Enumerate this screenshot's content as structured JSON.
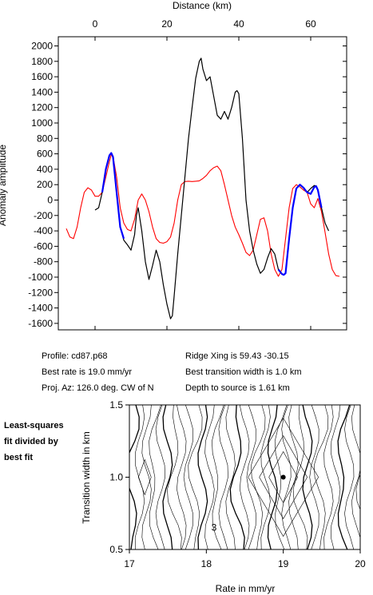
{
  "colors": {
    "observed": "#000000",
    "fit_segments": "#0000ff",
    "model": "#ff0000",
    "frame": "#000000"
  },
  "chart_data": [
    {
      "type": "line",
      "xlabel": "Distance (km)",
      "ylabel": "Anomaly amplitude",
      "xlim": [
        -10,
        70
      ],
      "ylim": [
        -1650,
        2050
      ],
      "x_ticks": [
        "0",
        "20",
        "40",
        "60"
      ],
      "y_ticks": [
        "2000",
        "1800",
        "1600",
        "1400",
        "1200",
        "1000",
        "800",
        "600",
        "400",
        "200",
        "0",
        "-200",
        "-400",
        "-600",
        "-800",
        "-1000",
        "-1200",
        "-1400",
        "-1600"
      ],
      "grid": false,
      "series": [
        {
          "name": "observed",
          "x": [
            0,
            1,
            2,
            3,
            4,
            4.5,
            5,
            6,
            7,
            8,
            9,
            10,
            11,
            11.5,
            12,
            13,
            14,
            15,
            16,
            17,
            18,
            19,
            20,
            21,
            21.5,
            22,
            23,
            24,
            25,
            26,
            27,
            28,
            29,
            29.5,
            30,
            31,
            32,
            33,
            34,
            35,
            35.5,
            36,
            37,
            38,
            39,
            39.5,
            40,
            41,
            42,
            43,
            44,
            45,
            46,
            47,
            48,
            49,
            50,
            51,
            52,
            52.5,
            53,
            54,
            55,
            56,
            57,
            58,
            59,
            60,
            61,
            61.5,
            62,
            63,
            64,
            65
          ],
          "y": [
            -130,
            -100,
            100,
            400,
            580,
            610,
            560,
            100,
            -350,
            -520,
            -580,
            -650,
            -450,
            -200,
            -100,
            -400,
            -800,
            -1030,
            -850,
            -650,
            -800,
            -1100,
            -1350,
            -1540,
            -1500,
            -1250,
            -700,
            -200,
            300,
            800,
            1200,
            1580,
            1800,
            1840,
            1700,
            1550,
            1600,
            1350,
            1100,
            1050,
            1100,
            1150,
            1050,
            1200,
            1400,
            1420,
            1380,
            800,
            0,
            -400,
            -650,
            -830,
            -950,
            -900,
            -750,
            -630,
            -700,
            -900,
            -960,
            -970,
            -950,
            -500,
            -100,
            150,
            200,
            160,
            100,
            150,
            190,
            180,
            130,
            -100,
            -300,
            -400
          ]
        },
        {
          "name": "fit",
          "segments": [
            {
              "x": [
                2,
                3,
                4,
                4.5,
                5,
                6,
                7,
                8
              ],
              "y": [
                100,
                400,
                580,
                610,
                560,
                100,
                -350,
                -500
              ]
            },
            {
              "x": [
                51,
                52,
                52.5,
                53,
                54,
                55,
                56,
                57,
                58,
                59,
                60,
                61,
                61.5,
                62,
                63
              ],
              "y": [
                -900,
                -960,
                -970,
                -950,
                -500,
                -100,
                150,
                200,
                160,
                100,
                80,
                170,
                180,
                130,
                -100
              ]
            }
          ]
        },
        {
          "name": "model",
          "x": [
            -8,
            -7,
            -6,
            -5,
            -4,
            -3,
            -2,
            -1,
            0,
            1,
            2,
            3,
            4,
            4.5,
            5,
            6,
            7,
            8,
            9,
            10,
            11,
            12,
            13,
            14,
            15,
            16,
            17,
            18,
            19,
            20,
            21,
            22,
            23,
            24,
            25,
            26,
            27,
            28,
            29,
            30,
            31,
            32,
            33,
            34,
            35,
            36,
            37,
            38,
            39,
            40,
            41,
            42,
            43,
            44,
            45,
            46,
            47,
            48,
            49,
            50,
            51,
            52,
            53,
            54,
            55,
            56,
            57,
            58,
            59,
            60,
            61,
            62,
            63,
            64,
            65,
            66,
            67,
            68
          ],
          "y": [
            -370,
            -480,
            -500,
            -350,
            -100,
            100,
            160,
            130,
            50,
            50,
            100,
            300,
            500,
            590,
            570,
            300,
            -100,
            -300,
            -380,
            -400,
            -250,
            0,
            80,
            0,
            -150,
            -350,
            -500,
            -550,
            -560,
            -540,
            -480,
            -300,
            0,
            200,
            240,
            245,
            240,
            245,
            250,
            280,
            320,
            380,
            420,
            440,
            380,
            200,
            0,
            -200,
            -350,
            -450,
            -560,
            -680,
            -720,
            -650,
            -450,
            -250,
            -230,
            -400,
            -700,
            -900,
            -990,
            -900,
            -500,
            -100,
            150,
            200,
            170,
            130,
            100,
            -50,
            -100,
            20,
            -150,
            -420,
            -700,
            -900,
            -980,
            -990
          ]
        }
      ]
    },
    {
      "type": "contour",
      "xlabel": "Rate in mm/yr",
      "ylabel": "Transition width in km",
      "xlim": [
        17,
        20
      ],
      "ylim": [
        0.5,
        1.5
      ],
      "x_ticks": [
        "17",
        "18",
        "19",
        "20"
      ],
      "y_ticks": [
        "1.5",
        "1.0",
        "0.5"
      ],
      "best_fit_point": {
        "rate": 19.0,
        "width": 1.0
      },
      "contour_label": "3"
    }
  ],
  "info": {
    "profile": "Profile: cd87.p68",
    "ridge_xing": "Ridge Xing is 59.43 -30.15",
    "best_rate": "Best rate is 19.0 mm/yr",
    "best_transition": "Best transition width is 1.0 km",
    "proj_az": "Proj. Az: 126.0 deg. CW of N",
    "depth": "Depth to source is   1.61 km"
  },
  "side_note": {
    "line1": "Least-squares",
    "line2": "fit divided by",
    "line3": "best fit"
  }
}
